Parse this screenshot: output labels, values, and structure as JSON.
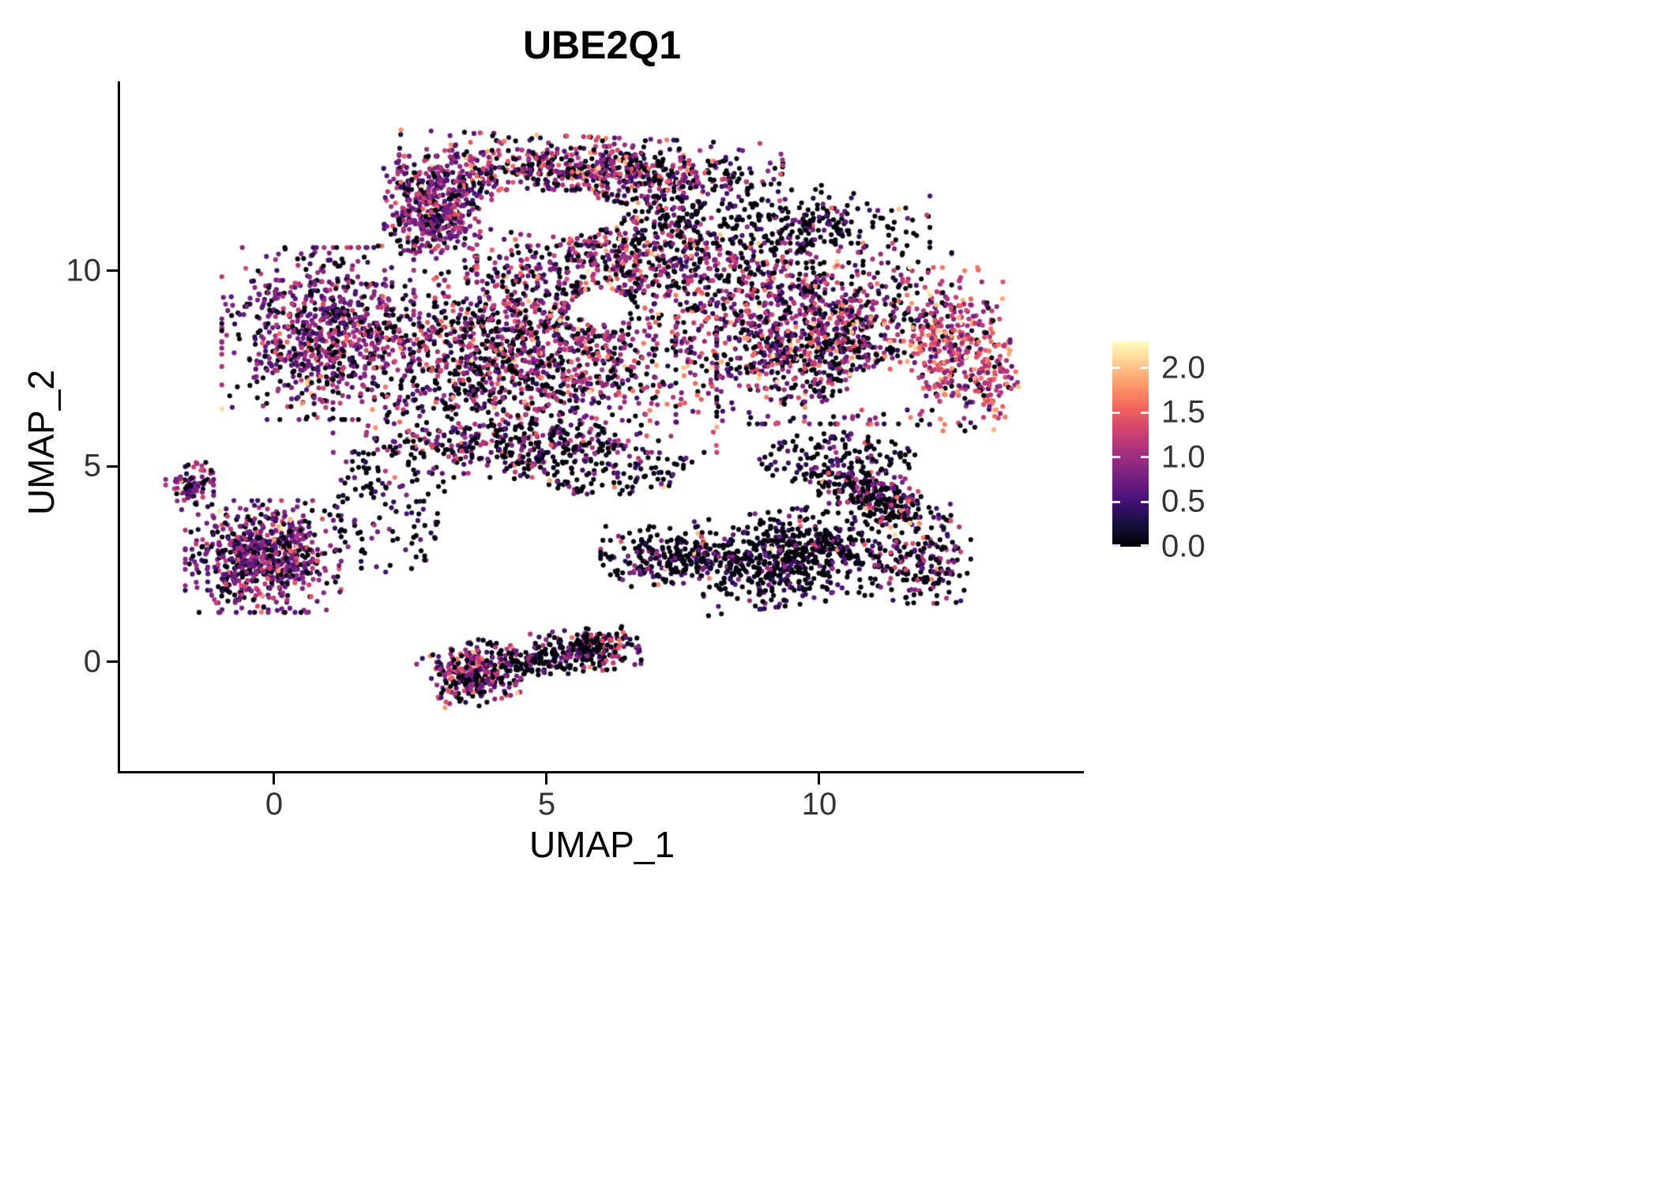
{
  "title": "UBE2Q1",
  "axes": {
    "x_label": "UMAP_1",
    "y_label": "UMAP_2",
    "x_tick_labels": [
      "0",
      "5",
      "10"
    ],
    "y_tick_labels": [
      "10",
      "5",
      "0"
    ]
  },
  "legend": {
    "ticks": [
      "2.0",
      "1.5",
      "1.0",
      "0.5",
      "0.0"
    ]
  },
  "chart_data": {
    "type": "scatter",
    "title": "UBE2Q1",
    "xlabel": "UMAP_1",
    "ylabel": "UMAP_2",
    "xlim": [
      -2.8,
      14.9
    ],
    "ylim": [
      -2.8,
      14.9
    ],
    "x_ticks": [
      0,
      5,
      10
    ],
    "y_ticks": [
      0,
      5,
      10
    ],
    "grid": false,
    "legend_position": "right",
    "colorbar": {
      "domain": [
        0,
        2.3
      ],
      "tick_values": [
        0.0,
        0.5,
        1.0,
        1.5,
        2.0
      ],
      "colormap": "magma"
    },
    "colormap_stops": [
      {
        "t": 0,
        "c": "#000004"
      },
      {
        "t": 0.111,
        "c": "#180f3e"
      },
      {
        "t": 0.222,
        "c": "#451077"
      },
      {
        "t": 0.333,
        "c": "#721f81"
      },
      {
        "t": 0.444,
        "c": "#9f2f7f"
      },
      {
        "t": 0.556,
        "c": "#cd4071"
      },
      {
        "t": 0.667,
        "c": "#f1605d"
      },
      {
        "t": 0.778,
        "c": "#fd9567"
      },
      {
        "t": 0.889,
        "c": "#feca8d"
      },
      {
        "t": 1,
        "c": "#fcfdbf"
      }
    ],
    "seed": 42,
    "point_radius_px": 3.1,
    "expression_profiles": {
      "purple": {
        "p0": 0.25,
        "mean": 0.85,
        "sd": 0.3
      },
      "mixed": {
        "p0": 0.34,
        "mean": 0.95,
        "sd": 0.45
      },
      "dark": {
        "p0": 0.66,
        "mean": 0.55,
        "sd": 0.3
      },
      "darkmixed": {
        "p0": 0.5,
        "mean": 0.8,
        "sd": 0.4
      },
      "colorful": {
        "p0": 0.1,
        "mean": 1.25,
        "sd": 0.4
      },
      "purplemixed": {
        "p0": 0.3,
        "mean": 0.9,
        "sd": 0.4
      }
    },
    "clusters": [
      {
        "name": "top-band",
        "cx": 5.8,
        "cy": 12.6,
        "rx": 3.2,
        "ry": 0.75,
        "rot": -3,
        "n": 750,
        "shape": "gauss",
        "profile": "mixed"
      },
      {
        "name": "top-left-knob",
        "cx": 3.0,
        "cy": 12.0,
        "rx": 0.9,
        "ry": 0.85,
        "rot": 0,
        "n": 280,
        "shape": "gauss",
        "profile": "purple"
      },
      {
        "name": "top-neck",
        "cx": 2.9,
        "cy": 11.2,
        "rx": 0.8,
        "ry": 0.8,
        "rot": 0,
        "n": 220,
        "shape": "gauss",
        "profile": "purple"
      },
      {
        "name": "top-gap-sparse",
        "cx": 6.8,
        "cy": 11.5,
        "rx": 1.2,
        "ry": 0.6,
        "rot": 0,
        "n": 90,
        "shape": "uniform",
        "profile": "dark"
      },
      {
        "name": "left-lobe",
        "cx": 0.8,
        "cy": 8.4,
        "rx": 1.6,
        "ry": 2.0,
        "rot": 0,
        "n": 750,
        "shape": "gauss",
        "profile": "purple"
      },
      {
        "name": "main-center",
        "cx": 4.6,
        "cy": 8.0,
        "rx": 3.2,
        "ry": 2.4,
        "rot": 0,
        "n": 1600,
        "shape": "gauss",
        "profile": "mixed"
      },
      {
        "name": "main-upper",
        "cx": 6.8,
        "cy": 10.3,
        "rx": 2.8,
        "ry": 1.2,
        "rot": 0,
        "n": 600,
        "shape": "gauss",
        "profile": "mixed"
      },
      {
        "name": "main-bottom-fringe",
        "cx": 4.3,
        "cy": 5.6,
        "rx": 2.5,
        "ry": 0.8,
        "rot": 0,
        "n": 300,
        "shape": "gauss",
        "profile": "darkmixed"
      },
      {
        "name": "right-mass",
        "cx": 9.9,
        "cy": 8.4,
        "rx": 2.3,
        "ry": 2.1,
        "rot": 0,
        "n": 1150,
        "shape": "gauss",
        "profile": "mixed"
      },
      {
        "name": "right-edge-colorful",
        "cx": 12.4,
        "cy": 8.0,
        "rx": 1.0,
        "ry": 1.9,
        "rot": 0,
        "n": 330,
        "shape": "gauss",
        "profile": "colorful"
      },
      {
        "name": "top-right-sparse",
        "cx": 9.5,
        "cy": 11.2,
        "rx": 2.3,
        "ry": 0.9,
        "rot": 0,
        "n": 260,
        "shape": "gauss",
        "profile": "dark"
      },
      {
        "name": "far-right-tip",
        "cx": 13.1,
        "cy": 7.2,
        "rx": 0.5,
        "ry": 0.9,
        "rot": 0,
        "n": 90,
        "shape": "gauss",
        "profile": "colorful"
      },
      {
        "name": "right-lower-sparse",
        "cx": 10.3,
        "cy": 5.2,
        "rx": 1.5,
        "ry": 0.7,
        "rot": 0,
        "n": 150,
        "shape": "uniform",
        "profile": "dark"
      },
      {
        "name": "left-cluster",
        "cx": -0.2,
        "cy": 2.7,
        "rx": 1.3,
        "ry": 1.3,
        "rot": 0,
        "n": 700,
        "shape": "gauss",
        "profile": "purple"
      },
      {
        "name": "left-knob",
        "cx": -1.55,
        "cy": 4.5,
        "rx": 0.4,
        "ry": 0.55,
        "rot": 0,
        "n": 90,
        "shape": "gauss",
        "profile": "purple"
      },
      {
        "name": "crescent-body",
        "cx": 9.6,
        "cy": 2.7,
        "rx": 1.7,
        "ry": 1.1,
        "rot": 10,
        "n": 650,
        "shape": "gauss",
        "profile": "dark"
      },
      {
        "name": "crescent-upper-arm",
        "cx": 11.1,
        "cy": 4.2,
        "rx": 1.3,
        "ry": 0.6,
        "rot": -30,
        "n": 280,
        "shape": "gauss",
        "profile": "darkmixed"
      },
      {
        "name": "crescent-left-arm",
        "cx": 7.2,
        "cy": 2.7,
        "rx": 1.1,
        "ry": 0.7,
        "rot": 0,
        "n": 240,
        "shape": "gauss",
        "profile": "dark"
      },
      {
        "name": "crescent-right-tip",
        "cx": 11.9,
        "cy": 2.6,
        "rx": 0.8,
        "ry": 1.0,
        "rot": 0,
        "n": 170,
        "shape": "gauss",
        "profile": "darkmixed"
      },
      {
        "name": "snake-a",
        "cx": 3.7,
        "cy": -0.3,
        "rx": 0.8,
        "ry": 0.7,
        "rot": 25,
        "n": 320,
        "shape": "gauss",
        "profile": "purplemixed"
      },
      {
        "name": "snake-b",
        "cx": 5.7,
        "cy": 0.3,
        "rx": 0.9,
        "ry": 0.5,
        "rot": 8,
        "n": 230,
        "shape": "gauss",
        "profile": "darkmixed"
      },
      {
        "name": "snake-bridge",
        "cx": 4.7,
        "cy": 0.0,
        "rx": 0.6,
        "ry": 0.35,
        "rot": 0,
        "n": 90,
        "shape": "gauss",
        "profile": "dark"
      },
      {
        "name": "connector-sparse",
        "cx": 2.1,
        "cy": 4.0,
        "rx": 1.1,
        "ry": 1.8,
        "rot": 0,
        "n": 130,
        "shape": "uniform",
        "profile": "dark"
      },
      {
        "name": "mid-sparse-band",
        "cx": 6.0,
        "cy": 4.9,
        "rx": 1.8,
        "ry": 0.65,
        "rot": 0,
        "n": 140,
        "shape": "uniform",
        "profile": "dark"
      }
    ],
    "voids": [
      {
        "cx": 5.1,
        "cy": 11.45,
        "rx": 1.3,
        "ry": 0.55
      },
      {
        "cx": 6.0,
        "cy": 9.1,
        "rx": 0.55,
        "ry": 0.45
      },
      {
        "cx": 11.2,
        "cy": 6.9,
        "rx": 0.7,
        "ry": 0.55
      }
    ]
  }
}
